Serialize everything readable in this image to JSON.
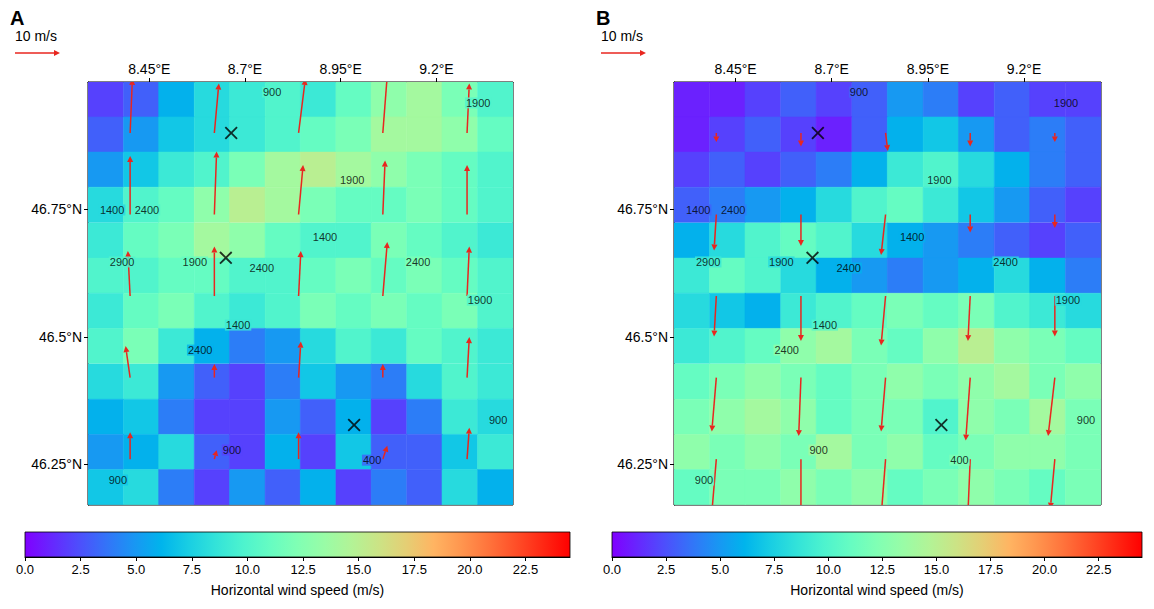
{
  "chart_data": [
    {
      "type": "heatmap",
      "panel": "A",
      "key": {
        "value": 10,
        "label": "10 m/s"
      },
      "xlim": [
        8.29,
        9.4
      ],
      "xticks": [
        {
          "value": 8.45,
          "label": "8.45°E"
        },
        {
          "value": 8.7,
          "label": "8.7°E"
        },
        {
          "value": 8.95,
          "label": "8.95°E"
        },
        {
          "value": 9.2,
          "label": "9.2°E"
        }
      ],
      "ylim": [
        46.17,
        47.0
      ],
      "yticks": [
        {
          "value": 46.25,
          "label": "46.25°N"
        },
        {
          "value": 46.5,
          "label": "46.5°N"
        },
        {
          "value": 46.75,
          "label": "46.75°N"
        }
      ],
      "grid": false,
      "x": [
        8.336,
        8.429,
        8.521,
        8.614,
        8.706,
        8.799,
        8.891,
        8.984,
        9.076,
        9.169,
        9.261,
        9.354
      ],
      "y": [
        46.966,
        46.897,
        46.828,
        46.759,
        46.689,
        46.62,
        46.551,
        46.482,
        46.412,
        46.343,
        46.274,
        46.205
      ],
      "values": [
        [
          2,
          3,
          6,
          8,
          9,
          10,
          9,
          11,
          13,
          14,
          12,
          10
        ],
        [
          3,
          5,
          7,
          8,
          9,
          10,
          11,
          12,
          14,
          14,
          13,
          11
        ],
        [
          5,
          7,
          9,
          10,
          12,
          14,
          15,
          14,
          13,
          12,
          11,
          10
        ],
        [
          8,
          10,
          11,
          13,
          15,
          14,
          12,
          11,
          11,
          12,
          11,
          10
        ],
        [
          9,
          11,
          12,
          14,
          13,
          11,
          10,
          10,
          12,
          11,
          10,
          9
        ],
        [
          10,
          10,
          11,
          11,
          10,
          10,
          11,
          12,
          11,
          12,
          11,
          10
        ],
        [
          9,
          11,
          12,
          10,
          9,
          10,
          12,
          11,
          12,
          11,
          12,
          10
        ],
        [
          10,
          12,
          9,
          6,
          4,
          5,
          8,
          10,
          9,
          11,
          10,
          9
        ],
        [
          8,
          9,
          5,
          3,
          2,
          4,
          7,
          5,
          4,
          8,
          10,
          9
        ],
        [
          6,
          7,
          4,
          2,
          2,
          5,
          3,
          6,
          2,
          4,
          9,
          8
        ],
        [
          5,
          6,
          8,
          3,
          2,
          6,
          2,
          7,
          3,
          3,
          7,
          9
        ],
        [
          7,
          8,
          4,
          2,
          5,
          3,
          6,
          2,
          4,
          3,
          8,
          6
        ]
      ],
      "colorbar": {
        "label": "Horizontal wind speed (m/s)",
        "lim": [
          0,
          24.5
        ],
        "ticks": [
          {
            "value": 0,
            "label": "0.0"
          },
          2.5,
          {
            "value": 5,
            "label": "5.0"
          },
          7.5,
          {
            "value": 10,
            "label": "10.0"
          },
          12.5,
          {
            "value": 15,
            "label": "15.0"
          },
          17.5,
          {
            "value": 20,
            "label": "20.0"
          },
          22.5
        ]
      },
      "vectors": {
        "color": "#e8261f",
        "lon": [
          8.4,
          8.62,
          8.84,
          9.06,
          9.28,
          8.4,
          8.62,
          8.84,
          9.06,
          9.28,
          8.4,
          8.62,
          8.84,
          9.06,
          9.28,
          8.4,
          8.62,
          8.84,
          9.06,
          9.28,
          8.4,
          8.62,
          8.84,
          9.06,
          9.28
        ],
        "lat": [
          46.9,
          46.9,
          46.9,
          46.9,
          46.9,
          46.74,
          46.74,
          46.74,
          46.74,
          46.74,
          46.58,
          46.58,
          46.58,
          46.58,
          46.58,
          46.42,
          46.42,
          46.42,
          46.42,
          46.42,
          46.26,
          46.26,
          46.26,
          46.26,
          46.26
        ],
        "u": [
          0.5,
          1,
          1.5,
          1,
          0.5,
          0,
          0.5,
          1,
          0.5,
          0,
          -0.5,
          0,
          0.5,
          1,
          0.5,
          -1,
          0,
          0.5,
          0,
          0.5,
          0,
          0.5,
          0,
          1,
          0.5
        ],
        "v": [
          12,
          11,
          12,
          13,
          11,
          13,
          14,
          11,
          12,
          11,
          10,
          11,
          10,
          12,
          11,
          7,
          3,
          8,
          3,
          9,
          6,
          2,
          6,
          3,
          7
        ]
      },
      "stations": {
        "marker": "x",
        "color": "#000000",
        "lon": [
          8.664,
          8.65,
          8.985
        ],
        "lat": [
          46.9,
          46.655,
          46.327
        ]
      },
      "contour_labels": {
        "labels": [
          "900",
          "1900",
          "1400",
          "2400",
          "1900",
          "1400",
          "2900",
          "1900",
          "2400",
          "2400",
          "1900",
          "1400",
          "2400",
          "900",
          "900",
          "400",
          "900"
        ],
        "lon": [
          8.771,
          9.309,
          8.353,
          8.444,
          8.98,
          8.909,
          8.379,
          8.569,
          8.744,
          9.152,
          9.314,
          8.682,
          8.583,
          9.361,
          8.666,
          9.032,
          8.368
        ],
        "lat": [
          46.98,
          46.959,
          46.749,
          46.749,
          46.808,
          46.696,
          46.647,
          46.647,
          46.635,
          46.647,
          46.572,
          46.523,
          46.474,
          46.337,
          46.278,
          46.258,
          46.219
        ]
      }
    },
    {
      "type": "heatmap",
      "panel": "B",
      "key": {
        "value": 10,
        "label": "10 m/s"
      },
      "xlim": [
        8.29,
        9.4
      ],
      "xticks": [
        {
          "value": 8.45,
          "label": "8.45°E"
        },
        {
          "value": 8.7,
          "label": "8.7°E"
        },
        {
          "value": 8.95,
          "label": "8.95°E"
        },
        {
          "value": 9.2,
          "label": "9.2°E"
        }
      ],
      "ylim": [
        46.17,
        47.0
      ],
      "yticks": [
        {
          "value": 46.25,
          "label": "46.25°N"
        },
        {
          "value": 46.5,
          "label": "46.5°N"
        },
        {
          "value": 46.75,
          "label": "46.75°N"
        }
      ],
      "grid": false,
      "x": [
        8.336,
        8.429,
        8.521,
        8.614,
        8.706,
        8.799,
        8.891,
        8.984,
        9.076,
        9.169,
        9.261,
        9.354
      ],
      "y": [
        46.966,
        46.897,
        46.828,
        46.759,
        46.689,
        46.62,
        46.551,
        46.482,
        46.412,
        46.343,
        46.274,
        46.205
      ],
      "values": [
        [
          1,
          1,
          2,
          3,
          2,
          3,
          5,
          4,
          2,
          3,
          2,
          2
        ],
        [
          1,
          2,
          3,
          2,
          1,
          3,
          6,
          7,
          5,
          3,
          4,
          3
        ],
        [
          2,
          3,
          2,
          3,
          4,
          6,
          9,
          10,
          8,
          6,
          4,
          3
        ],
        [
          3,
          4,
          5,
          6,
          8,
          10,
          11,
          9,
          7,
          5,
          3,
          2
        ],
        [
          6,
          8,
          10,
          11,
          10,
          8,
          6,
          5,
          4,
          3,
          2,
          3
        ],
        [
          9,
          11,
          10,
          8,
          6,
          5,
          4,
          5,
          6,
          8,
          6,
          4
        ],
        [
          8,
          7,
          6,
          9,
          10,
          11,
          12,
          11,
          12,
          10,
          9,
          8
        ],
        [
          9,
          10,
          11,
          13,
          14,
          12,
          11,
          13,
          15,
          13,
          12,
          11
        ],
        [
          11,
          12,
          13,
          12,
          11,
          12,
          13,
          12,
          13,
          14,
          12,
          13
        ],
        [
          12,
          13,
          14,
          13,
          11,
          12,
          12,
          10,
          13,
          12,
          14,
          12
        ],
        [
          13,
          12,
          13,
          12,
          14,
          12,
          13,
          11,
          12,
          13,
          13,
          12
        ],
        [
          11,
          12,
          12,
          13,
          12,
          13,
          11,
          12,
          13,
          12,
          11,
          12
        ]
      ],
      "colorbar": {
        "label": "Horizontal wind speed (m/s)",
        "lim": [
          0,
          24.5
        ],
        "ticks": [
          {
            "value": 0,
            "label": "0.0"
          },
          2.5,
          {
            "value": 5,
            "label": "5.0"
          },
          7.5,
          {
            "value": 10,
            "label": "10.0"
          },
          12.5,
          {
            "value": 15,
            "label": "15.0"
          },
          17.5,
          {
            "value": 20,
            "label": "20.0"
          },
          22.5
        ]
      },
      "vectors": {
        "color": "#e8261f",
        "lon": [
          8.4,
          8.62,
          8.84,
          9.06,
          9.28,
          8.4,
          8.62,
          8.84,
          9.06,
          9.28,
          8.4,
          8.62,
          8.84,
          9.06,
          9.28,
          8.4,
          8.62,
          8.84,
          9.06,
          9.28,
          8.4,
          8.62,
          8.84,
          9.06,
          9.28
        ],
        "lat": [
          46.9,
          46.9,
          46.9,
          46.9,
          46.9,
          46.74,
          46.74,
          46.74,
          46.74,
          46.74,
          46.58,
          46.58,
          46.58,
          46.58,
          46.58,
          46.42,
          46.42,
          46.42,
          46.42,
          46.42,
          46.26,
          46.26,
          46.26,
          46.26,
          46.26
        ],
        "u": [
          0,
          0,
          0.5,
          0,
          0,
          -0.5,
          0,
          -1,
          0,
          0,
          -0.5,
          0,
          -1,
          -0.5,
          0,
          -1,
          -0.5,
          -1,
          -1,
          -1.5,
          -1,
          0,
          -1,
          -0.5,
          -1
        ],
        "v": [
          -2,
          -3,
          -4,
          -3,
          -2,
          -8,
          -7,
          -9,
          -4,
          -3,
          -9,
          -10,
          -11,
          -10,
          -9,
          -12,
          -13,
          -12,
          -14,
          -13,
          -12,
          -12,
          -13,
          -12,
          -11
        ]
      },
      "stations": {
        "marker": "x",
        "color": "#000000",
        "lon": [
          8.664,
          8.65,
          8.985
        ],
        "lat": [
          46.9,
          46.655,
          46.327
        ]
      },
      "contour_labels": {
        "labels": [
          "900",
          "1900",
          "1400",
          "2400",
          "1900",
          "1400",
          "2900",
          "1900",
          "2400",
          "2400",
          "1900",
          "1400",
          "2400",
          "900",
          "900",
          "400",
          "900"
        ],
        "lon": [
          8.771,
          9.309,
          8.353,
          8.444,
          8.98,
          8.909,
          8.379,
          8.569,
          8.744,
          9.152,
          9.314,
          8.682,
          8.583,
          9.361,
          8.666,
          9.032,
          8.368
        ],
        "lat": [
          46.98,
          46.959,
          46.749,
          46.749,
          46.808,
          46.696,
          46.647,
          46.647,
          46.635,
          46.647,
          46.572,
          46.523,
          46.474,
          46.337,
          46.278,
          46.258,
          46.219
        ]
      }
    }
  ]
}
